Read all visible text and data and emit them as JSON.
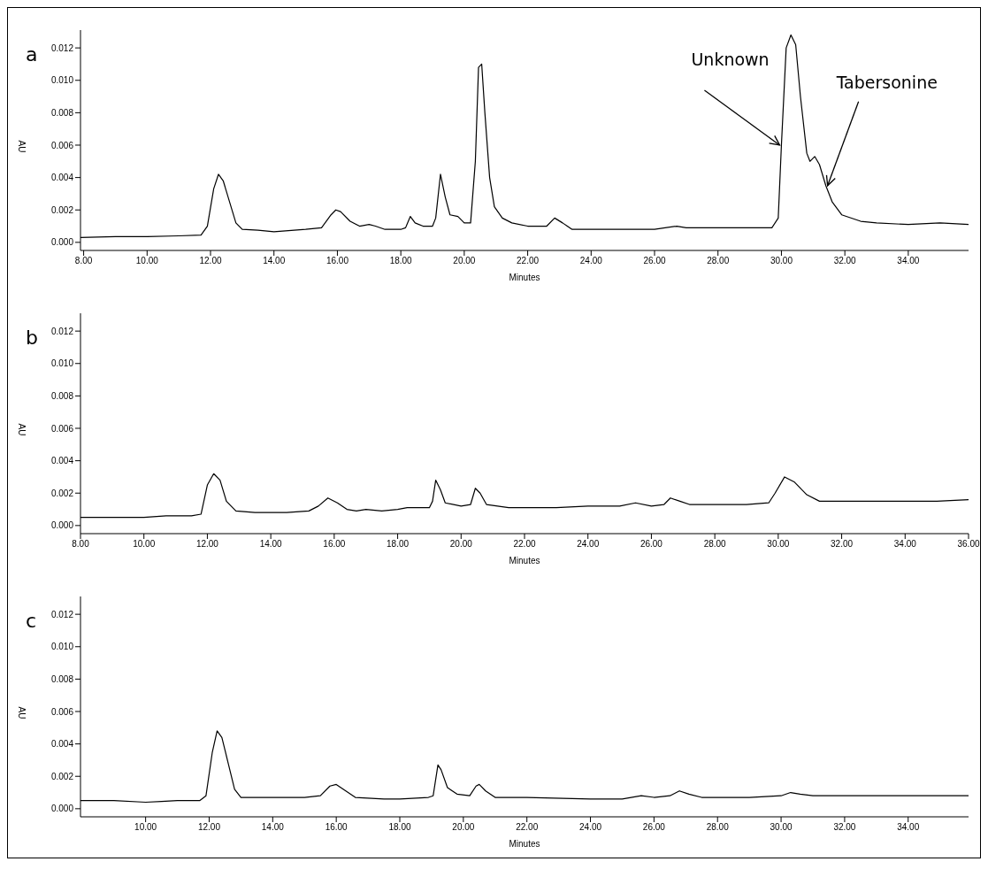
{
  "chart_data": [
    {
      "type": "line",
      "title": "a",
      "xlabel": "Minutes",
      "ylabel": "AU",
      "xlim": [
        7.9,
        35.9
      ],
      "ylim": [
        -0.0005,
        0.0131
      ],
      "xticks": [
        {
          "value": 8,
          "label": "8.00"
        },
        {
          "value": 10,
          "label": "10.00"
        },
        {
          "value": 12,
          "label": "12.00"
        },
        {
          "value": 14,
          "label": "14.00"
        },
        {
          "value": 16,
          "label": "16.00"
        },
        {
          "value": 18,
          "label": "18.00"
        },
        {
          "value": 20,
          "label": "20.00"
        },
        {
          "value": 22,
          "label": "22.00"
        },
        {
          "value": 24,
          "label": "24.00"
        },
        {
          "value": 26,
          "label": "26.00"
        },
        {
          "value": 28,
          "label": "28.00"
        },
        {
          "value": 30,
          "label": "30.00"
        },
        {
          "value": 32,
          "label": "32.00"
        },
        {
          "value": 34,
          "label": "34.00"
        }
      ],
      "yticks": [
        {
          "value": 0,
          "label": "0.000"
        },
        {
          "value": 0.002,
          "label": "0.002"
        },
        {
          "value": 0.004,
          "label": "0.004"
        },
        {
          "value": 0.006,
          "label": "0.006"
        },
        {
          "value": 0.008,
          "label": "0.008"
        },
        {
          "value": 0.01,
          "label": "0.010"
        },
        {
          "value": 0.012,
          "label": "0.012"
        }
      ],
      "annotations": [
        {
          "text": "Unknown",
          "x": 30,
          "y": 0.006
        },
        {
          "text": "Tabersonine",
          "x": 31.4,
          "y": 0.0035
        }
      ],
      "x": [
        7.9,
        9,
        10,
        11,
        11.7,
        11.9,
        12.1,
        12.25,
        12.4,
        12.6,
        12.8,
        13,
        13.5,
        14,
        15,
        15.5,
        15.8,
        15.95,
        16.1,
        16.4,
        16.7,
        17,
        17.2,
        17.5,
        18,
        18.15,
        18.3,
        18.45,
        18.7,
        19,
        19.1,
        19.25,
        19.4,
        19.55,
        19.8,
        20,
        20.2,
        20.35,
        20.45,
        20.55,
        20.65,
        20.8,
        20.95,
        21.2,
        21.5,
        22,
        22.6,
        22.85,
        23.1,
        23.4,
        24,
        25,
        26,
        26.7,
        27,
        28,
        29,
        29.7,
        29.9,
        30,
        30.15,
        30.3,
        30.45,
        30.6,
        30.8,
        30.9,
        31.05,
        31.2,
        31.4,
        31.6,
        31.9,
        32.5,
        33,
        34,
        35,
        35.9
      ],
      "series": [
        {
          "color": "#000000",
          "values": [
            0.0003,
            0.00035,
            0.00035,
            0.0004,
            0.00045,
            0.001,
            0.0033,
            0.0042,
            0.0038,
            0.0025,
            0.0012,
            0.0008,
            0.00075,
            0.00065,
            0.0008,
            0.0009,
            0.0017,
            0.002,
            0.0019,
            0.0013,
            0.001,
            0.0011,
            0.001,
            0.0008,
            0.0008,
            0.0009,
            0.0016,
            0.0012,
            0.001,
            0.001,
            0.0015,
            0.0042,
            0.0028,
            0.0017,
            0.0016,
            0.0012,
            0.0012,
            0.005,
            0.0108,
            0.011,
            0.008,
            0.004,
            0.0022,
            0.0015,
            0.0012,
            0.001,
            0.001,
            0.0015,
            0.0012,
            0.0008,
            0.0008,
            0.0008,
            0.0008,
            0.001,
            0.0009,
            0.0009,
            0.0009,
            0.0009,
            0.0015,
            0.006,
            0.012,
            0.0128,
            0.0122,
            0.009,
            0.0055,
            0.005,
            0.0053,
            0.0048,
            0.0035,
            0.0025,
            0.0017,
            0.0013,
            0.0012,
            0.0011,
            0.0012,
            0.0011
          ]
        }
      ]
    },
    {
      "type": "line",
      "title": "b",
      "xlabel": "Minutes",
      "ylabel": "AU",
      "xlim": [
        8,
        36
      ],
      "ylim": [
        -0.0005,
        0.0131
      ],
      "xticks": [
        {
          "value": 8,
          "label": "8.00"
        },
        {
          "value": 10,
          "label": "10.00"
        },
        {
          "value": 12,
          "label": "12.00"
        },
        {
          "value": 14,
          "label": "14.00"
        },
        {
          "value": 16,
          "label": "16.00"
        },
        {
          "value": 18,
          "label": "18.00"
        },
        {
          "value": 20,
          "label": "20.00"
        },
        {
          "value": 22,
          "label": "22.00"
        },
        {
          "value": 24,
          "label": "24.00"
        },
        {
          "value": 26,
          "label": "26.00"
        },
        {
          "value": 28,
          "label": "28.00"
        },
        {
          "value": 30,
          "label": "30.00"
        },
        {
          "value": 32,
          "label": "32.00"
        },
        {
          "value": 34,
          "label": "34.00"
        },
        {
          "value": 36,
          "label": "36.00"
        }
      ],
      "yticks": [
        {
          "value": 0,
          "label": "0.000"
        },
        {
          "value": 0.002,
          "label": "0.002"
        },
        {
          "value": 0.004,
          "label": "0.004"
        },
        {
          "value": 0.006,
          "label": "0.006"
        },
        {
          "value": 0.008,
          "label": "0.008"
        },
        {
          "value": 0.01,
          "label": "0.010"
        },
        {
          "value": 0.012,
          "label": "0.012"
        }
      ],
      "x": [
        8,
        10,
        10.7,
        11.5,
        11.8,
        12,
        12.2,
        12.4,
        12.6,
        12.9,
        13.5,
        14.5,
        15.2,
        15.5,
        15.8,
        16.1,
        16.4,
        16.7,
        17,
        17.5,
        18,
        18.3,
        19,
        19.1,
        19.2,
        19.35,
        19.5,
        20,
        20.3,
        20.45,
        20.6,
        20.8,
        21.5,
        23,
        24,
        25,
        25.5,
        26,
        26.4,
        26.6,
        26.9,
        27.2,
        28,
        29,
        29.7,
        29.9,
        30.2,
        30.5,
        30.9,
        31.3,
        32,
        34,
        35,
        36
      ],
      "series": [
        {
          "color": "#000000",
          "values": [
            0.0005,
            0.0005,
            0.0006,
            0.0006,
            0.0007,
            0.0025,
            0.0032,
            0.0028,
            0.0015,
            0.0009,
            0.0008,
            0.0008,
            0.0009,
            0.0012,
            0.0017,
            0.0014,
            0.001,
            0.0009,
            0.001,
            0.0009,
            0.001,
            0.0011,
            0.0011,
            0.0015,
            0.0028,
            0.0022,
            0.0014,
            0.0012,
            0.0013,
            0.0023,
            0.002,
            0.0013,
            0.0011,
            0.0011,
            0.0012,
            0.0012,
            0.0014,
            0.0012,
            0.0013,
            0.0017,
            0.0015,
            0.0013,
            0.0013,
            0.0013,
            0.0014,
            0.002,
            0.003,
            0.0027,
            0.0019,
            0.0015,
            0.0015,
            0.0015,
            0.0015,
            0.0016
          ]
        }
      ]
    },
    {
      "type": "line",
      "title": "c",
      "xlabel": "Minutes",
      "ylabel": "AU",
      "xlim": [
        7.95,
        35.9
      ],
      "ylim": [
        -0.0005,
        0.0131
      ],
      "xticks": [
        {
          "value": 10,
          "label": "10.00"
        },
        {
          "value": 12,
          "label": "12.00"
        },
        {
          "value": 14,
          "label": "14.00"
        },
        {
          "value": 16,
          "label": "16.00"
        },
        {
          "value": 18,
          "label": "18.00"
        },
        {
          "value": 20,
          "label": "20.00"
        },
        {
          "value": 22,
          "label": "22.00"
        },
        {
          "value": 24,
          "label": "24.00"
        },
        {
          "value": 26,
          "label": "26.00"
        },
        {
          "value": 28,
          "label": "28.00"
        },
        {
          "value": 30,
          "label": "30.00"
        },
        {
          "value": 32,
          "label": "32.00"
        },
        {
          "value": 34,
          "label": "34.00"
        }
      ],
      "yticks": [
        {
          "value": 0,
          "label": "0.000"
        },
        {
          "value": 0.002,
          "label": "0.002"
        },
        {
          "value": 0.004,
          "label": "0.004"
        },
        {
          "value": 0.006,
          "label": "0.006"
        },
        {
          "value": 0.008,
          "label": "0.008"
        },
        {
          "value": 0.01,
          "label": "0.010"
        },
        {
          "value": 0.012,
          "label": "0.012"
        }
      ],
      "x": [
        7.95,
        9,
        10,
        10.5,
        11,
        11.7,
        11.9,
        12.1,
        12.25,
        12.4,
        12.6,
        12.8,
        13,
        14,
        15,
        15.5,
        15.8,
        16,
        16.3,
        16.6,
        17.5,
        18,
        18.9,
        19.05,
        19.2,
        19.3,
        19.5,
        19.8,
        20.2,
        20.4,
        20.5,
        20.7,
        21,
        22,
        24,
        25,
        25.6,
        26,
        26.5,
        26.8,
        27.1,
        27.5,
        29,
        30,
        30.3,
        30.6,
        31,
        33,
        35.9
      ],
      "series": [
        {
          "color": "#000000",
          "values": [
            0.0005,
            0.0005,
            0.0004,
            0.00045,
            0.0005,
            0.0005,
            0.0008,
            0.0035,
            0.0048,
            0.0044,
            0.0028,
            0.0012,
            0.0007,
            0.0007,
            0.0007,
            0.0008,
            0.0014,
            0.0015,
            0.0011,
            0.0007,
            0.0006,
            0.0006,
            0.0007,
            0.0008,
            0.0027,
            0.0024,
            0.0013,
            0.0009,
            0.0008,
            0.0014,
            0.0015,
            0.0011,
            0.0007,
            0.0007,
            0.0006,
            0.0006,
            0.0008,
            0.0007,
            0.0008,
            0.0011,
            0.0009,
            0.0007,
            0.0007,
            0.0008,
            0.001,
            0.0009,
            0.0008,
            0.0008,
            0.0008
          ]
        }
      ]
    }
  ]
}
